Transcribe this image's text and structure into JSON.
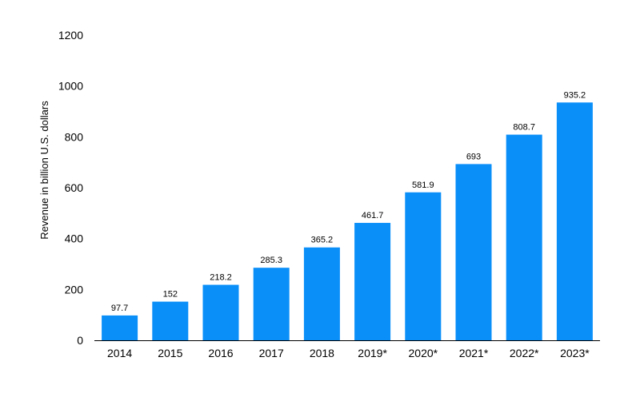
{
  "chart_data": {
    "type": "bar",
    "categories": [
      "2014",
      "2015",
      "2016",
      "2017",
      "2018",
      "2019*",
      "2020*",
      "2021*",
      "2022*",
      "2023*"
    ],
    "values": [
      97.7,
      152,
      218.2,
      285.3,
      365.2,
      461.7,
      581.9,
      693,
      808.7,
      935.2
    ],
    "value_labels": [
      "97.7",
      "152",
      "218.2",
      "285.3",
      "365.2",
      "461.7",
      "581.9",
      "693",
      "808.7",
      "935.2"
    ],
    "title": "",
    "xlabel": "",
    "ylabel": "Revenue in billion U.S. dollars",
    "ylim": [
      0,
      1200
    ],
    "yticks": [
      0,
      200,
      400,
      600,
      800,
      1000,
      1200
    ],
    "grid": false,
    "bar_color": "#0a8ff9"
  }
}
